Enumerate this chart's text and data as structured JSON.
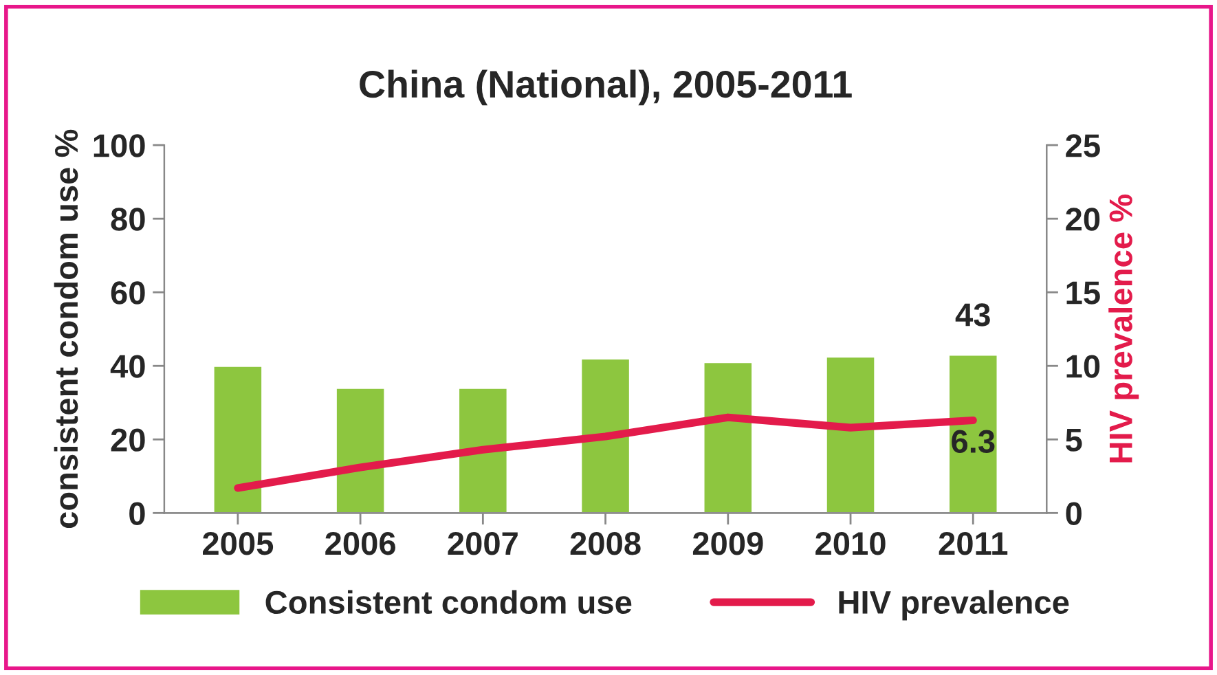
{
  "chart_data": {
    "type": "bar",
    "title": "China (National), 2005-2011",
    "categories": [
      "2005",
      "2006",
      "2007",
      "2008",
      "2009",
      "2010",
      "2011"
    ],
    "series": [
      {
        "name": "Consistent condom use",
        "color": "#8dc63f",
        "values": [
          40,
          34,
          34,
          42,
          41,
          42.5,
          43
        ],
        "value_labels": [
          null,
          null,
          null,
          null,
          null,
          null,
          "43"
        ]
      },
      {
        "name": "HIV prevalence",
        "type": "line",
        "axis": "y2",
        "color": "#e31b4b",
        "values": [
          1.7,
          3.1,
          4.3,
          5.2,
          6.5,
          5.8,
          6.3
        ],
        "value_labels": [
          null,
          null,
          null,
          null,
          null,
          null,
          "6.3"
        ]
      }
    ],
    "ylabel": "consistent condom use %",
    "y2label": "HIV prevalence %",
    "ylim": [
      0,
      100
    ],
    "yticks": [
      0,
      20,
      40,
      60,
      80,
      100
    ],
    "y2lim": [
      0,
      25
    ],
    "y2ticks": [
      0,
      5,
      10,
      15,
      20,
      25
    ],
    "grid": false,
    "legend": "bottom",
    "marker": "none",
    "line_style": "solid"
  }
}
